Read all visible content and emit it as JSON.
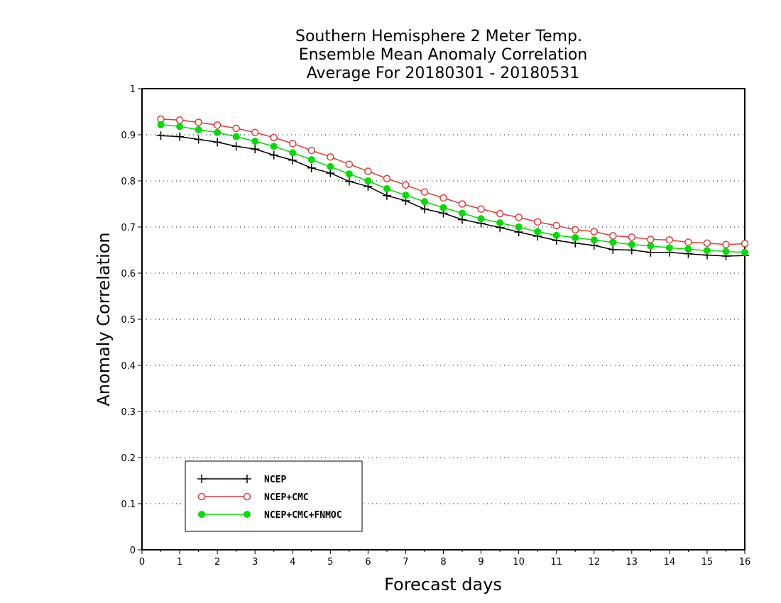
{
  "chart_data": {
    "type": "line",
    "title": [
      "Southern Hemisphere 2 Meter Temp.",
      "Ensemble Mean Anomaly Correlation",
      "Average For 20180301 - 20180531"
    ],
    "xlabel": "Forecast days",
    "ylabel": "Anomaly Correlation",
    "xlim": [
      0,
      16
    ],
    "ylim": [
      0,
      1
    ],
    "xticks": [
      "0",
      "1",
      "2",
      "3",
      "4",
      "5",
      "6",
      "7",
      "8",
      "9",
      "10",
      "11",
      "12",
      "13",
      "14",
      "15",
      "16"
    ],
    "yticks": [
      "0",
      "0.1",
      "0.2",
      "0.3",
      "0.4",
      "0.5",
      "0.6",
      "0.7",
      "0.8",
      "0.9",
      "1"
    ],
    "grid": "horizontal dotted",
    "legend_position": "bottom-left",
    "x": [
      0.5,
      1,
      1.5,
      2,
      2.5,
      3,
      3.5,
      4,
      4.5,
      5,
      5.5,
      6,
      6.5,
      7,
      7.5,
      8,
      8.5,
      9,
      9.5,
      10,
      10.5,
      11,
      11.5,
      12,
      12.5,
      13,
      13.5,
      14,
      14.5,
      15,
      15.5,
      16
    ],
    "series": [
      {
        "name": "NCEP",
        "color": "#000000",
        "marker": "plus",
        "values": [
          0.898,
          0.896,
          0.89,
          0.884,
          0.875,
          0.869,
          0.856,
          0.845,
          0.828,
          0.817,
          0.799,
          0.788,
          0.768,
          0.757,
          0.739,
          0.73,
          0.716,
          0.708,
          0.699,
          0.689,
          0.68,
          0.671,
          0.665,
          0.66,
          0.651,
          0.65,
          0.645,
          0.645,
          0.642,
          0.639,
          0.637,
          0.638
        ]
      },
      {
        "name": "NCEP+CMC",
        "color": "#e8393a",
        "marker": "open-circle",
        "values": [
          0.934,
          0.932,
          0.927,
          0.921,
          0.914,
          0.905,
          0.894,
          0.881,
          0.866,
          0.852,
          0.836,
          0.821,
          0.805,
          0.791,
          0.776,
          0.763,
          0.75,
          0.739,
          0.729,
          0.721,
          0.711,
          0.703,
          0.694,
          0.69,
          0.681,
          0.678,
          0.673,
          0.672,
          0.667,
          0.665,
          0.662,
          0.664
        ]
      },
      {
        "name": "NCEP+CMC+FNMOC",
        "color": "#00dd00",
        "marker": "filled-circle",
        "values": [
          0.922,
          0.918,
          0.911,
          0.905,
          0.896,
          0.886,
          0.875,
          0.861,
          0.846,
          0.831,
          0.815,
          0.8,
          0.783,
          0.769,
          0.755,
          0.742,
          0.73,
          0.718,
          0.709,
          0.7,
          0.69,
          0.682,
          0.677,
          0.672,
          0.667,
          0.662,
          0.659,
          0.655,
          0.652,
          0.649,
          0.647,
          0.645
        ]
      }
    ]
  }
}
